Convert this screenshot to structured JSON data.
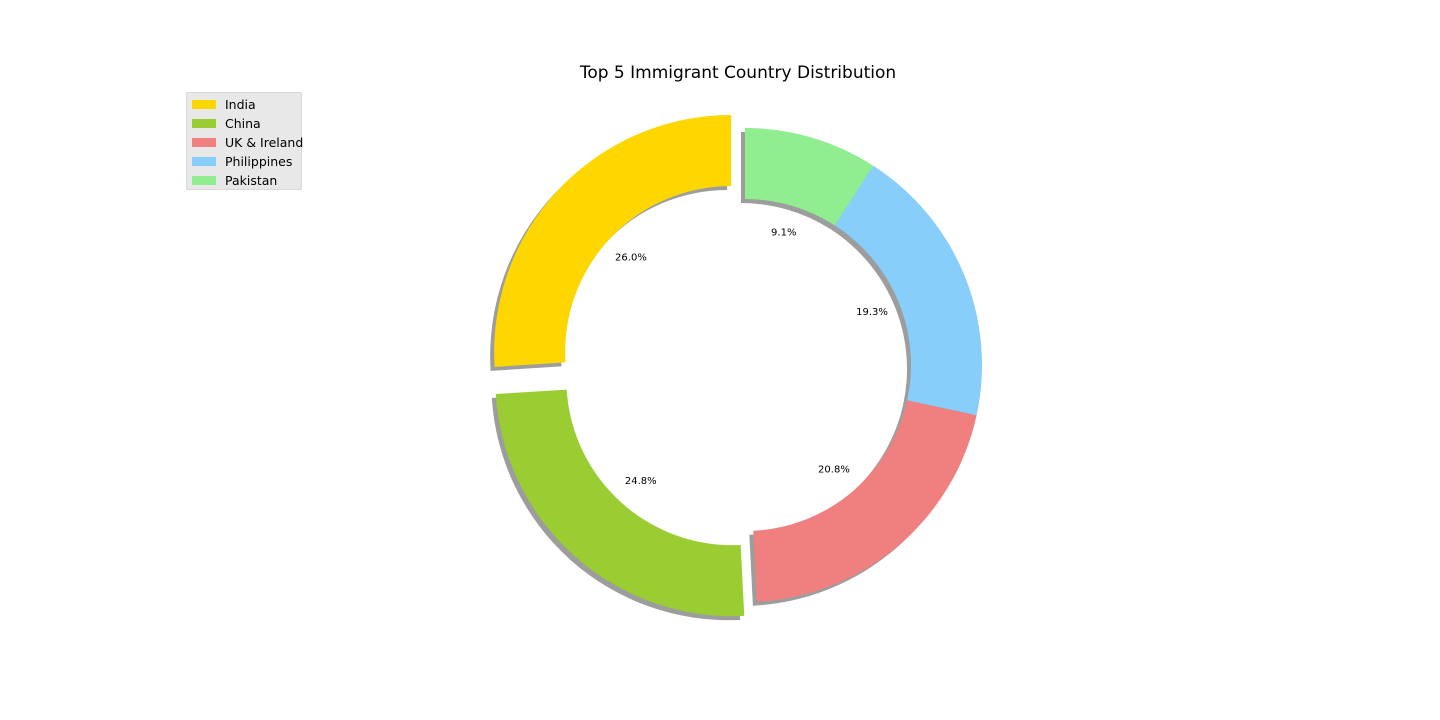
{
  "chart_data": {
    "type": "pie",
    "variant": "donut",
    "title": "Top 5 Immigrant Country Distribution",
    "categories": [
      "India",
      "China",
      "UK & Ireland",
      "Philippines",
      "Pakistan"
    ],
    "values": [
      26.0,
      24.8,
      20.8,
      19.3,
      9.1
    ],
    "value_labels": [
      "26.0%",
      "24.8%",
      "20.8%",
      "19.3%",
      "9.1%"
    ],
    "colors": [
      "#ffd700",
      "#9acd32",
      "#f08080",
      "#87cefa",
      "#90ee90"
    ],
    "exploded": [
      "India",
      "China"
    ],
    "shadow": true,
    "start_angle_deg": 90,
    "direction": "counterclockwise",
    "legend": {
      "position": "upper-left",
      "entries": [
        "India",
        "China",
        "UK & Ireland",
        "Philippines",
        "Pakistan"
      ]
    }
  }
}
